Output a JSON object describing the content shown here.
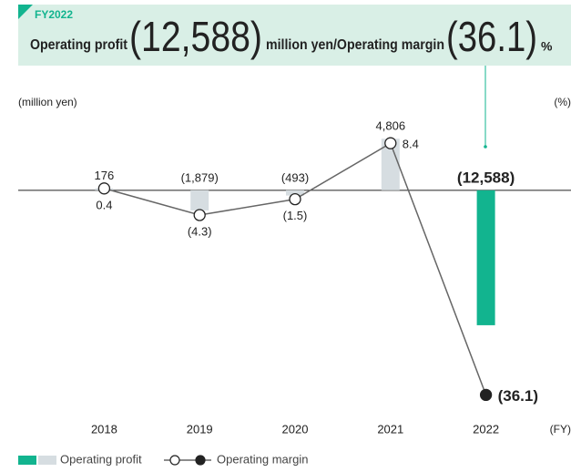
{
  "header": {
    "label": "FY2022",
    "profit_text": "Operating profit",
    "profit_value": "(12,588)",
    "middle_text": "million yen/Operating margin",
    "margin_value": "(36.1)",
    "margin_unit": "%"
  },
  "chart_data": {
    "type": "bar_line",
    "y_label": "(million yen)",
    "y2_label": "(%)",
    "x_label": "(FY)",
    "categories": [
      "2018",
      "2019",
      "2020",
      "2021",
      "2022"
    ],
    "ylim": [
      -22200,
      8400
    ],
    "y2lim": [
      -42,
      16
    ],
    "series": [
      {
        "name": "Operating profit",
        "type": "bar",
        "color": "#12b48f",
        "colors": [
          "#d6dde1",
          "#d6dde1",
          "#d6dde1",
          "#d6dde1",
          "#12b48f"
        ],
        "values": [
          176,
          -1879,
          -493,
          4806,
          -12588
        ],
        "value_labels": [
          "176",
          "(1,879)",
          "(493)",
          "4,806",
          "(12,588)"
        ]
      },
      {
        "name": "Operating margin",
        "type": "line",
        "axis": "y2",
        "color": "#666666",
        "marker_colors": [
          "#ffffff",
          "#ffffff",
          "#ffffff",
          "#ffffff",
          "#222222"
        ],
        "values": [
          0.4,
          -4.3,
          -1.5,
          8.4,
          -36.1
        ],
        "value_labels": [
          "0.4",
          "(4.3)",
          "(1.5)",
          "8.4",
          "(36.1)"
        ]
      }
    ]
  }
}
